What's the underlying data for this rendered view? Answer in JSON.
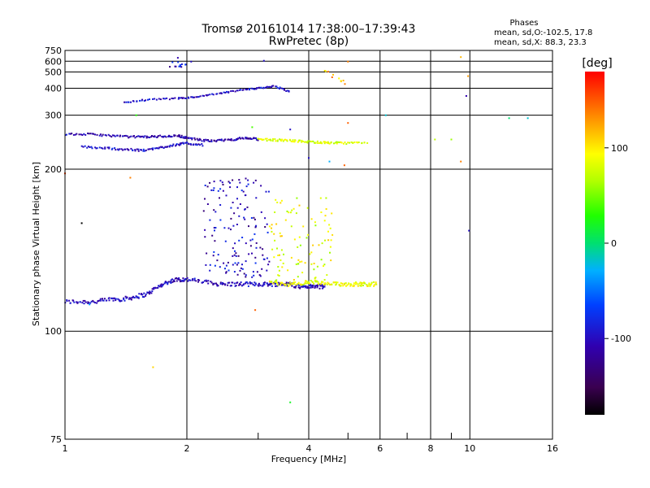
{
  "chart_data": {
    "type": "scatter",
    "title": "Tromsø 20161014 17:38:00–17:39:43",
    "subtitle": "RwPretec (8p)",
    "xlabel": "Frequency [MHz]",
    "ylabel": "Stationary phase Virtual Height [km]",
    "x_scale": "log",
    "y_scale": "reciprocal",
    "xlim": [
      1,
      16
    ],
    "ylim": [
      75,
      750
    ],
    "x_ticks": [
      "1",
      "2",
      "4",
      "6",
      "8",
      "10",
      "16"
    ],
    "y_ticks": [
      "75",
      "100",
      "200",
      "300",
      "400",
      "500",
      "600",
      "750"
    ],
    "grid": true,
    "stats_heading": "Phases",
    "stats_lines": [
      "mean, sd,O:-102.5, 17.8",
      "mean, sd,X: 88.3, 23.3"
    ],
    "colorbar": {
      "label": "[deg]",
      "range": [
        -180,
        180
      ],
      "ticks": [
        "100",
        "0",
        "-100"
      ],
      "tick_values": [
        100,
        0,
        -100
      ]
    },
    "traces": [
      {
        "trace": "E-O",
        "x": [
          1.0,
          1.1,
          1.2,
          1.3,
          1.4,
          1.5,
          1.6,
          1.7,
          1.8,
          1.9,
          2.0,
          2.2,
          2.4,
          2.6,
          2.8,
          3.0,
          3.2,
          3.4,
          3.6,
          3.8,
          4.0,
          4.2,
          4.4
        ],
        "y": [
          110,
          110,
          110,
          111,
          111,
          112,
          113,
          116,
          118,
          119,
          119,
          118,
          117,
          117,
          117,
          117,
          117,
          117,
          117,
          116,
          116,
          116,
          116
        ],
        "phase": -105
      },
      {
        "trace": "E-X",
        "x": [
          3.2,
          3.5,
          3.8,
          4.1,
          4.4,
          4.7,
          5.0,
          5.3,
          5.6,
          5.9
        ],
        "y": [
          118,
          117,
          117,
          118,
          117,
          117,
          117,
          117,
          117,
          117
        ],
        "phase": 90
      },
      {
        "trace": "F-O",
        "x": [
          1.0,
          1.15,
          1.3,
          1.45,
          1.6,
          1.75,
          1.9,
          2.0,
          2.2,
          2.4,
          2.6,
          2.8,
          3.0
        ],
        "y": [
          255,
          255,
          252,
          250,
          250,
          251,
          252,
          248,
          243,
          243,
          245,
          248,
          245
        ],
        "phase": -110
      },
      {
        "trace": "F-lower",
        "x": [
          1.1,
          1.25,
          1.4,
          1.55,
          1.7,
          1.85,
          2.0,
          2.2
        ],
        "y": [
          232,
          230,
          228,
          226,
          230,
          235,
          238,
          235
        ],
        "phase": -100
      },
      {
        "trace": "F-X",
        "x": [
          3.0,
          3.3,
          3.6,
          3.9,
          4.2,
          4.5,
          5.0,
          5.6
        ],
        "y": [
          245,
          244,
          243,
          241,
          240,
          239,
          238,
          240
        ],
        "phase": 80
      },
      {
        "trace": "2F",
        "x": [
          1.4,
          1.6,
          1.9,
          2.1,
          2.4,
          2.7,
          3.0,
          3.3,
          3.6
        ],
        "y": [
          340,
          350,
          355,
          360,
          375,
          390,
          400,
          410,
          380
        ],
        "phase": -100
      }
    ],
    "scatter_clouds": [
      {
        "xlim": [
          2.2,
          3.2
        ],
        "ylim": [
          120,
          190
        ],
        "phase": -105,
        "count": 150
      },
      {
        "xlim": [
          3.2,
          4.6
        ],
        "ylim": [
          118,
          170
        ],
        "phase": 85,
        "count": 100
      },
      {
        "xlim": [
          1.8,
          2.0
        ],
        "ylim": [
          540,
          590
        ],
        "phase": -100,
        "count": 12
      },
      {
        "xlim": [
          4.3,
          5.0
        ],
        "ylim": [
          420,
          520
        ],
        "phase": 120,
        "count": 10
      }
    ],
    "outliers": [
      {
        "x": 1.9,
        "y": 640,
        "phase": -110
      },
      {
        "x": 2.05,
        "y": 595,
        "phase": -100
      },
      {
        "x": 3.1,
        "y": 605,
        "phase": -100
      },
      {
        "x": 5.0,
        "y": 595,
        "phase": 140
      },
      {
        "x": 9.5,
        "y": 650,
        "phase": 120
      },
      {
        "x": 9.9,
        "y": 470,
        "phase": 130
      },
      {
        "x": 9.8,
        "y": 365,
        "phase": -110
      },
      {
        "x": 6.2,
        "y": 300,
        "phase": -20
      },
      {
        "x": 12.5,
        "y": 292,
        "phase": 0
      },
      {
        "x": 13.9,
        "y": 292,
        "phase": -20
      },
      {
        "x": 8.2,
        "y": 245,
        "phase": 70
      },
      {
        "x": 9.0,
        "y": 245,
        "phase": 60
      },
      {
        "x": 9.5,
        "y": 210,
        "phase": 140
      },
      {
        "x": 9.95,
        "y": 145,
        "phase": -100
      },
      {
        "x": 1.65,
        "y": 90,
        "phase": 110
      },
      {
        "x": 2.95,
        "y": 107,
        "phase": 150
      },
      {
        "x": 3.6,
        "y": 82,
        "phase": 20
      },
      {
        "x": 1.15,
        "y": 109,
        "phase": -40
      },
      {
        "x": 1.1,
        "y": 150,
        "phase": -180
      },
      {
        "x": 1.45,
        "y": 190,
        "phase": 140
      },
      {
        "x": 1.0,
        "y": 195,
        "phase": 160
      },
      {
        "x": 4.0,
        "y": 215,
        "phase": -100
      },
      {
        "x": 4.5,
        "y": 210,
        "phase": -30
      },
      {
        "x": 5.0,
        "y": 280,
        "phase": 150
      },
      {
        "x": 4.9,
        "y": 205,
        "phase": 150
      },
      {
        "x": 1.5,
        "y": 300,
        "phase": 30
      },
      {
        "x": 3.6,
        "y": 265,
        "phase": -100
      },
      {
        "x": 2.9,
        "y": 270,
        "phase": 40
      }
    ]
  }
}
